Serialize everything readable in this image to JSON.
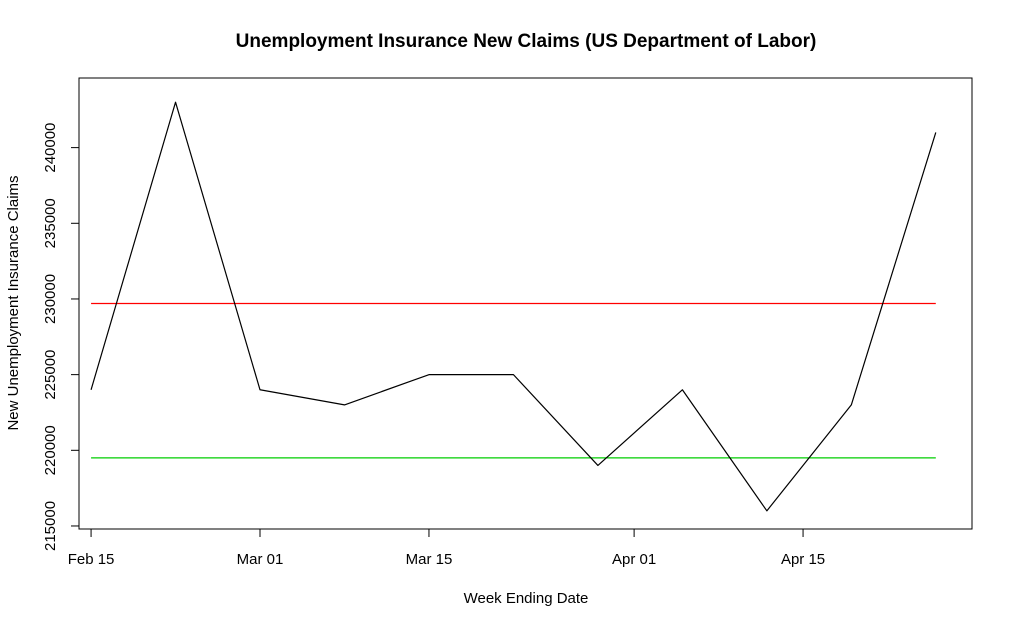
{
  "chart_data": {
    "type": "line",
    "title": "Unemployment Insurance New Claims (US Department of Labor)",
    "xlabel": "Week Ending Date",
    "ylabel": "New Unemployment Insurance Claims",
    "x_tick_labels": [
      {
        "date": "2014-02-15",
        "label": "Feb 15"
      },
      {
        "date": "2014-03-01",
        "label": "Mar 01"
      },
      {
        "date": "2014-03-15",
        "label": "Mar 15"
      },
      {
        "date": "2014-04-01",
        "label": "Apr 01"
      },
      {
        "date": "2014-04-15",
        "label": "Apr 15"
      }
    ],
    "y_ticks": [
      215000,
      220000,
      225000,
      230000,
      235000,
      240000
    ],
    "y_tick_labels": [
      "215000",
      "220000",
      "225000",
      "230000",
      "235000",
      "240000"
    ],
    "xlim": [
      "2014-02-14",
      "2014-04-29"
    ],
    "ylim": [
      214800,
      244600
    ],
    "grid": false,
    "series": [
      {
        "color": "#000000",
        "points": [
          {
            "x": "2014-02-15",
            "y": 224000
          },
          {
            "x": "2014-02-22",
            "y": 243000
          },
          {
            "x": "2014-03-01",
            "y": 224000
          },
          {
            "x": "2014-03-08",
            "y": 223000
          },
          {
            "x": "2014-03-15",
            "y": 225000
          },
          {
            "x": "2014-03-22",
            "y": 225000
          },
          {
            "x": "2014-03-29",
            "y": 219000
          },
          {
            "x": "2014-04-05",
            "y": 224000
          },
          {
            "x": "2014-04-12",
            "y": 216000
          },
          {
            "x": "2014-04-19",
            "y": 223000
          },
          {
            "x": "2014-04-26",
            "y": 241000
          }
        ]
      }
    ],
    "hlines": [
      {
        "y": 229700,
        "color": "#ff0000",
        "from": "2014-02-15",
        "to": "2014-04-26"
      },
      {
        "y": 219500,
        "color": "#00cd00",
        "from": "2014-02-15",
        "to": "2014-04-26"
      }
    ]
  }
}
